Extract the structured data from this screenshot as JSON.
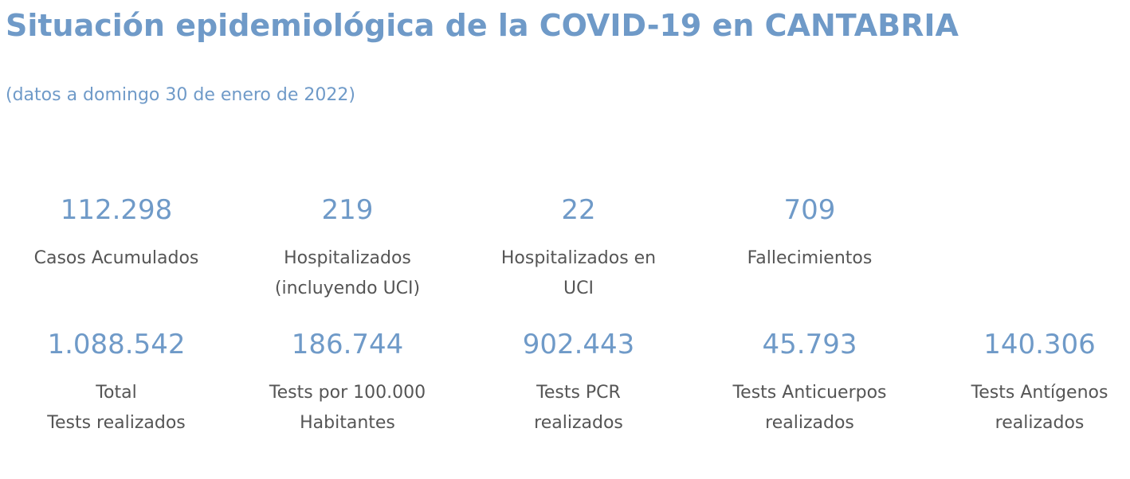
{
  "header": {
    "title": "Situación epidemiológica de la COVID-19 en CANTABRIA",
    "subtitle": "(datos a domingo 30 de enero de 2022)"
  },
  "stats_row1": [
    {
      "value": "112.298",
      "label_lines": [
        "Casos Acumulados"
      ]
    },
    {
      "value": "219",
      "label_lines": [
        "Hospitalizados",
        "(incluyendo UCI)"
      ]
    },
    {
      "value": "22",
      "label_lines": [
        "Hospitalizados en",
        "UCI"
      ]
    },
    {
      "value": "709",
      "label_lines": [
        "Fallecimientos"
      ]
    }
  ],
  "stats_row2": [
    {
      "value": "1.088.542",
      "label_lines": [
        "Total",
        "Tests realizados"
      ]
    },
    {
      "value": "186.744",
      "label_lines": [
        "Tests por 100.000",
        "Habitantes"
      ]
    },
    {
      "value": "902.443",
      "label_lines": [
        "Tests PCR",
        "realizados"
      ]
    },
    {
      "value": "45.793",
      "label_lines": [
        "Tests Anticuerpos",
        "realizados"
      ]
    },
    {
      "value": "140.306",
      "label_lines": [
        "Tests Antígenos",
        "realizados"
      ]
    }
  ],
  "colors": {
    "accent": "#6f9ac8",
    "label_text": "#555555",
    "background": "#ffffff"
  }
}
